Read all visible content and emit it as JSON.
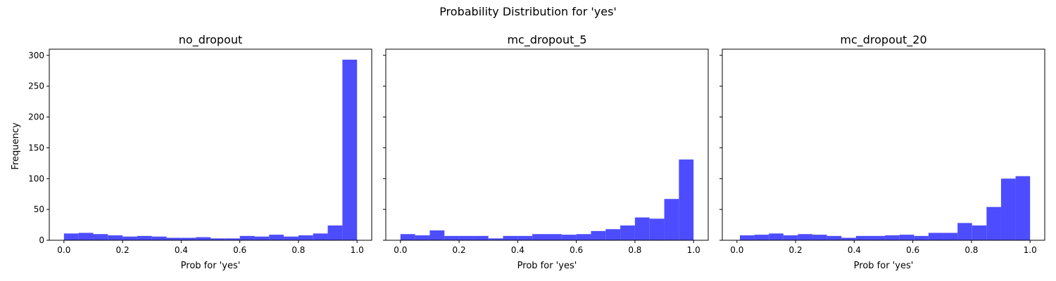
{
  "figure": {
    "suptitle": "Probability Distribution for 'yes'",
    "shared_ylabel": "Frequency"
  },
  "chart_data": [
    {
      "type": "bar",
      "title": "no_dropout",
      "xlabel": "Prob for 'yes'",
      "ylabel": "Frequency",
      "xlim": [
        0.0,
        1.0
      ],
      "ylim": [
        0,
        310
      ],
      "x_ticks": [
        "0.0",
        "0.2",
        "0.4",
        "0.6",
        "0.8",
        "1.0"
      ],
      "y_ticks": [
        "0",
        "50",
        "100",
        "150",
        "200",
        "250",
        "300"
      ],
      "bin_edges": [
        0.0,
        0.05,
        0.1,
        0.15,
        0.2,
        0.25,
        0.3,
        0.35,
        0.4,
        0.45,
        0.5,
        0.55,
        0.6,
        0.65,
        0.7,
        0.75,
        0.8,
        0.85,
        0.9,
        0.95,
        1.0
      ],
      "values": [
        11,
        12,
        10,
        8,
        6,
        7,
        6,
        4,
        4,
        5,
        3,
        3,
        7,
        6,
        9,
        6,
        8,
        11,
        24,
        293
      ],
      "color": "#4d4dff"
    },
    {
      "type": "bar",
      "title": "mc_dropout_5",
      "xlabel": "Prob for 'yes'",
      "xlim": [
        0.0,
        1.0
      ],
      "ylim": [
        0,
        310
      ],
      "x_ticks": [
        "0.0",
        "0.2",
        "0.4",
        "0.6",
        "0.8",
        "1.0"
      ],
      "bin_edges": [
        0.0,
        0.05,
        0.1,
        0.15,
        0.2,
        0.25,
        0.3,
        0.35,
        0.4,
        0.45,
        0.5,
        0.55,
        0.6,
        0.65,
        0.7,
        0.75,
        0.8,
        0.85,
        0.9,
        0.95,
        1.0
      ],
      "values": [
        10,
        8,
        16,
        7,
        7,
        7,
        3,
        7,
        7,
        10,
        10,
        9,
        10,
        15,
        18,
        24,
        37,
        35,
        67,
        131
      ],
      "color": "#4d4dff"
    },
    {
      "type": "bar",
      "title": "mc_dropout_20",
      "xlabel": "Prob for 'yes'",
      "xlim": [
        0.0,
        1.0
      ],
      "ylim": [
        0,
        310
      ],
      "x_ticks": [
        "0.0",
        "0.2",
        "0.4",
        "0.6",
        "0.8",
        "1.0"
      ],
      "bin_edges": [
        0.01,
        0.0595,
        0.109,
        0.1585,
        0.208,
        0.2575,
        0.307,
        0.3565,
        0.406,
        0.4555,
        0.505,
        0.5545,
        0.604,
        0.6535,
        0.703,
        0.7525,
        0.802,
        0.8515,
        0.901,
        0.9505,
        1.0
      ],
      "values": [
        8,
        9,
        11,
        8,
        10,
        9,
        7,
        4,
        7,
        7,
        8,
        9,
        7,
        12,
        12,
        28,
        24,
        54,
        100,
        104
      ],
      "color": "#4d4dff"
    }
  ]
}
